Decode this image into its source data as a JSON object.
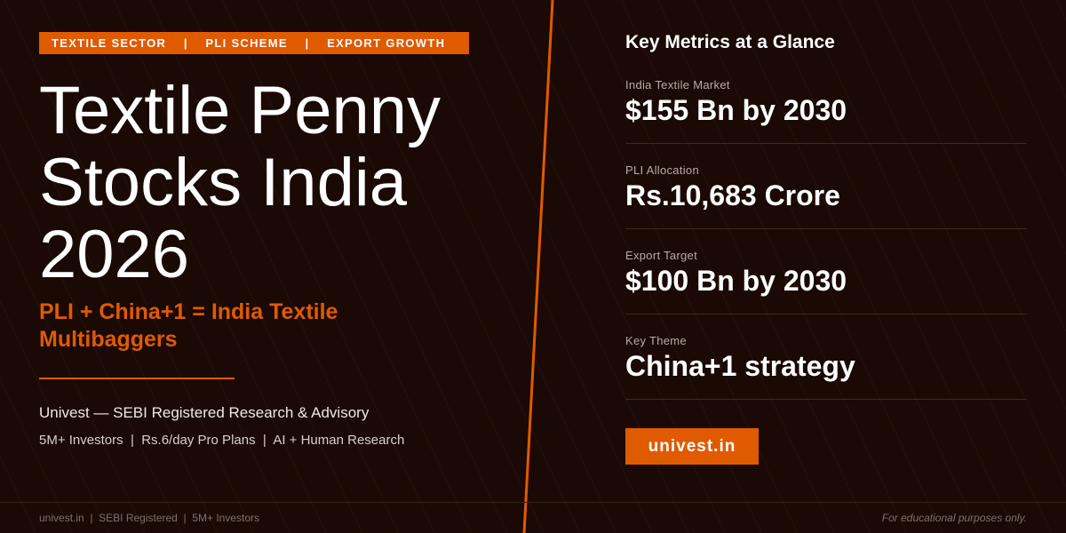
{
  "colors": {
    "accent": "#e05a00",
    "background": "#1a0904"
  },
  "tags": "TEXTILE SECTOR    |    PLI SCHEME    |    EXPORT GROWTH",
  "title": {
    "line1": "Textile Penny",
    "line2": "Stocks India",
    "line3": "2026"
  },
  "subtitle": "PLI + China+1 = India Textile Multibaggers",
  "brand": "Univest — SEBI Registered Research & Advisory",
  "facts": "5M+ Investors  |  Rs.6/day Pro Plans  |  AI + Human Research",
  "right": {
    "heading": "Key Metrics at a Glance",
    "metrics": [
      {
        "label": "India Textile Market",
        "value": "$155 Bn by 2030"
      },
      {
        "label": "PLI Allocation",
        "value": "Rs.10,683 Crore"
      },
      {
        "label": "Export Target",
        "value": "$100 Bn by 2030"
      },
      {
        "label": "Key Theme",
        "value": "China+1 strategy"
      }
    ],
    "cta": "univest.in"
  },
  "footer": {
    "left": "univest.in  |  SEBI Registered  |  5M+ Investors",
    "right": "For educational purposes only."
  }
}
